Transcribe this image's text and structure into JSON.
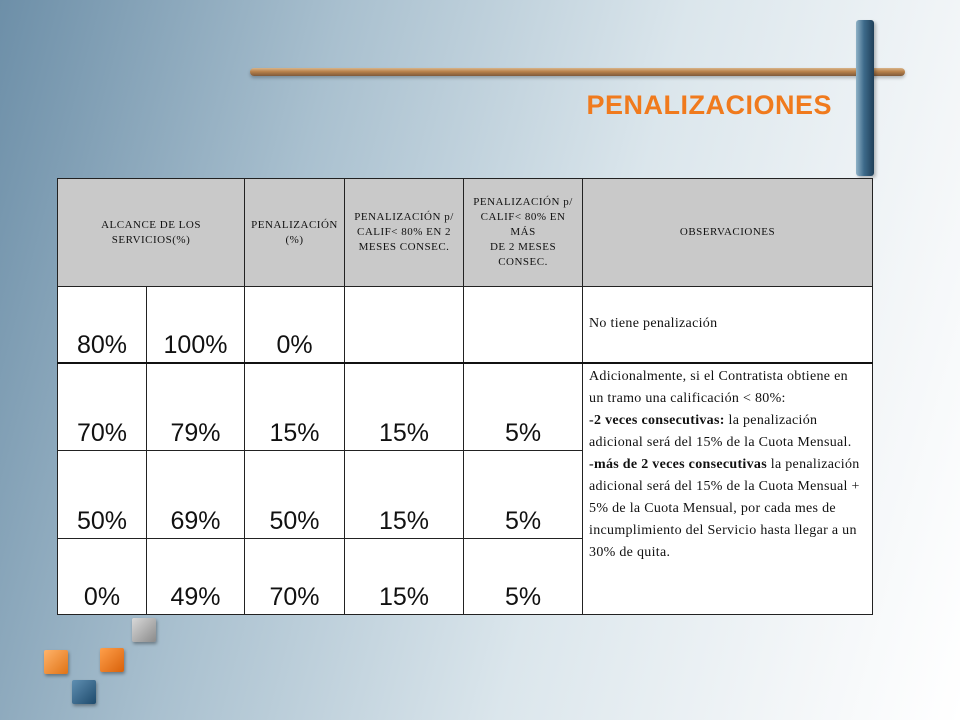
{
  "slide": {
    "title": "PENALIZACIONES"
  },
  "table": {
    "headers": {
      "alcance": [
        "ALCANCE DE LOS",
        "SERVICIOS(%)"
      ],
      "penalizacion": [
        "PENALIZACIÓN",
        "(%)"
      ],
      "calif2": [
        "PENALIZACIÓN p/",
        "CALIF< 80% EN 2",
        "MESES CONSEC."
      ],
      "califmas": [
        "PENALIZACIÓN p/",
        "CALIF< 80% EN MÁS",
        "DE 2 MESES",
        "CONSEC."
      ],
      "observaciones": "OBSERVACIONES"
    },
    "rows": [
      {
        "from": "80%",
        "to": "100%",
        "pen": "0%",
        "c2": "",
        "cm": ""
      },
      {
        "from": "70%",
        "to": "79%",
        "pen": "15%",
        "c2": "15%",
        "cm": "5%"
      },
      {
        "from": "50%",
        "to": "69%",
        "pen": "50%",
        "c2": "15%",
        "cm": "5%"
      },
      {
        "from": "0%",
        "to": "49%",
        "pen": "70%",
        "c2": "15%",
        "cm": "5%"
      }
    ],
    "obs_first": "No tiene penalización",
    "obs_second": {
      "intro": "Adicionalmente, si el Contratista obtiene en un tramo una calificación < 80%:",
      "bold1": "-2 veces consecutivas:",
      "text1": " la penalización adicional será del 15% de la Cuota Mensual.",
      "bold2": "-más de 2 veces consecutivas",
      "text2": " la penalización adicional será del 15% de la Cuota Mensual + 5% de la Cuota Mensual, por cada mes de incumplimiento del Servicio hasta llegar a un 30% de quita."
    }
  },
  "colors": {
    "title": "#f07a1d",
    "header_bg": "#c9c9c9",
    "accent_orange": "#e07316",
    "accent_blue": "#1e4a6c",
    "accent_grey": "#8a8a8a"
  }
}
